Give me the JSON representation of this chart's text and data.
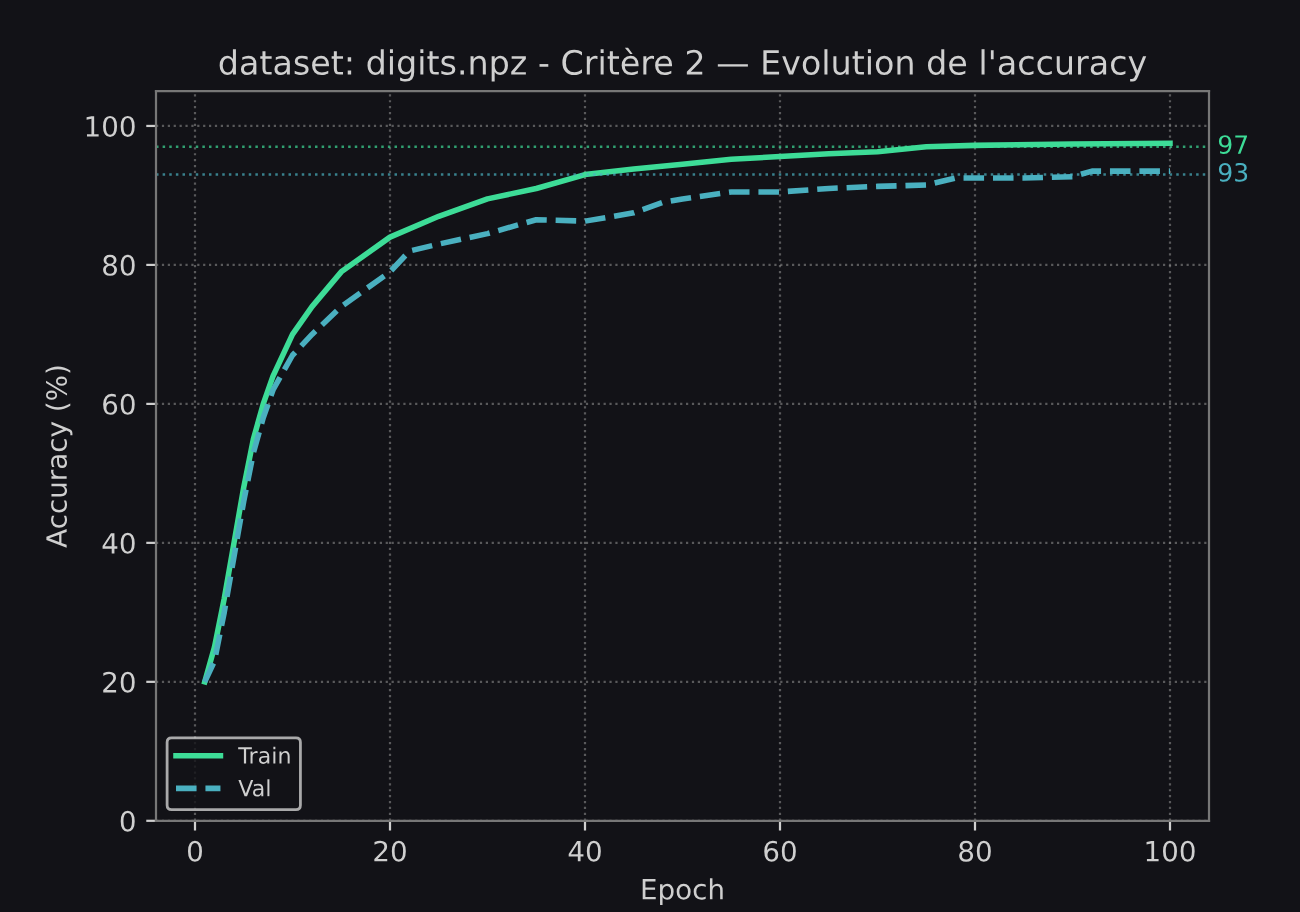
{
  "chart_data": {
    "type": "line",
    "title": "dataset: digits.npz - Critère 2 — Evolution de l'accuracy",
    "xlabel": "Epoch",
    "ylabel": "Accuracy (%)",
    "xlim": [
      -4,
      104
    ],
    "xticks": [
      0,
      20,
      40,
      60,
      80,
      100
    ],
    "ylim": [
      0,
      105
    ],
    "yticks": [
      0,
      20,
      40,
      60,
      80,
      100
    ],
    "grid": true,
    "legend": "bottom left",
    "marker": "none",
    "series": [
      {
        "name": "Train",
        "color": "#3ddc97",
        "line_style": "solid",
        "x": [
          1,
          2,
          3,
          4,
          5,
          6,
          7,
          8,
          10,
          12,
          15,
          20,
          25,
          30,
          35,
          40,
          45,
          50,
          55,
          60,
          65,
          70,
          75,
          80,
          90,
          100
        ],
        "values": [
          20,
          25,
          32,
          40,
          48,
          55,
          60,
          64,
          70,
          74,
          79,
          84,
          87,
          89.5,
          91,
          93,
          93.8,
          94.5,
          95.2,
          95.6,
          96,
          96.3,
          97,
          97.2,
          97.4,
          97.5
        ]
      },
      {
        "name": "Val",
        "color": "#4ab0c0",
        "line_style": "dashed",
        "x": [
          1,
          2,
          3,
          4,
          5,
          6,
          7,
          8,
          10,
          12,
          15,
          20,
          22,
          25,
          30,
          35,
          40,
          45,
          48,
          50,
          55,
          60,
          65,
          70,
          75,
          78,
          85,
          90,
          92,
          100
        ],
        "values": [
          20,
          23,
          30,
          38,
          46,
          53,
          58,
          62,
          67,
          70,
          74,
          79,
          82,
          83,
          84.5,
          86.5,
          86.3,
          87.5,
          89,
          89.5,
          90.5,
          90.5,
          91,
          91.3,
          91.5,
          92.5,
          92.5,
          92.7,
          93.5,
          93.5
        ]
      }
    ],
    "ref_lines": [
      {
        "axis": "y",
        "value": 97,
        "label": "97",
        "color": "#3ddc97",
        "line_style": "dotted"
      },
      {
        "axis": "y",
        "value": 93,
        "label": "93",
        "color": "#4ab0c0",
        "line_style": "dotted"
      }
    ]
  }
}
